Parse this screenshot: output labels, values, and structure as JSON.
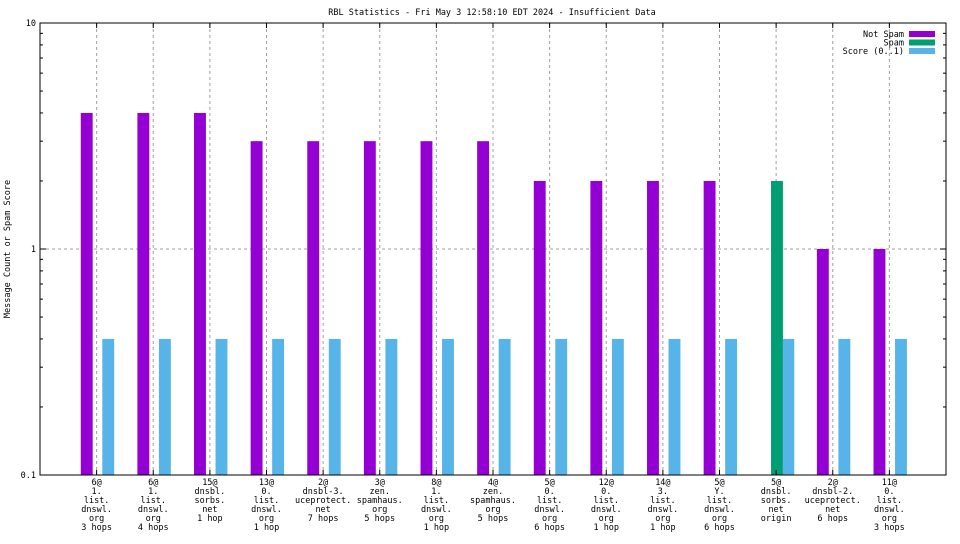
{
  "chart_data": {
    "type": "bar",
    "title": "RBL Statistics - Fri May  3 12:58:10 EDT 2024 - Insufficient Data",
    "ylabel": "Message Count or Spam Score",
    "xlabel": "",
    "yscale": "log",
    "ylim": [
      0.1,
      10
    ],
    "yticks": [
      "0.1",
      "1",
      "10"
    ],
    "grid": true,
    "legend_position": "top-right",
    "categories": [
      [
        "6@",
        "1.",
        "list.",
        "dnswl.",
        "org",
        "3 hops"
      ],
      [
        "6@",
        "1.",
        "list.",
        "dnswl.",
        "org",
        "4 hops"
      ],
      [
        "15@",
        "dnsbl.",
        "sorbs.",
        "net",
        "1 hop"
      ],
      [
        "13@",
        "0.",
        "list.",
        "dnswl.",
        "org",
        "1 hop"
      ],
      [
        "2@",
        "dnsbl-3.",
        "uceprotect.",
        "net",
        "7 hops"
      ],
      [
        "3@",
        "zen.",
        "spamhaus.",
        "org",
        "5 hops"
      ],
      [
        "8@",
        "1.",
        "list.",
        "dnswl.",
        "org",
        "1 hop"
      ],
      [
        "4@",
        "zen.",
        "spamhaus.",
        "org",
        "5 hops"
      ],
      [
        "5@",
        "0.",
        "list.",
        "dnswl.",
        "org",
        "6 hops"
      ],
      [
        "12@",
        "0.",
        "list.",
        "dnswl.",
        "org",
        "1 hop"
      ],
      [
        "14@",
        "3.",
        "list.",
        "dnswl.",
        "org",
        "1 hop"
      ],
      [
        "5@",
        "Y.",
        "list.",
        "dnswl.",
        "org",
        "6 hops"
      ],
      [
        "5@",
        "dnsbl.",
        "sorbs.",
        "net",
        "origin"
      ],
      [
        "2@",
        "dnsbl-2.",
        "uceprotect.",
        "net",
        "6 hops"
      ],
      [
        "11@",
        "0.",
        "list.",
        "dnswl.",
        "org",
        "3 hops"
      ]
    ],
    "series": [
      {
        "name": "Not Spam",
        "color": "#9400d3",
        "values": [
          4,
          4,
          4,
          3,
          3,
          3,
          3,
          3,
          2,
          2,
          2,
          2,
          null,
          1,
          1
        ]
      },
      {
        "name": "Spam",
        "color": "#009e73",
        "values": [
          null,
          null,
          null,
          null,
          null,
          null,
          null,
          null,
          null,
          null,
          null,
          null,
          2,
          null,
          null
        ]
      },
      {
        "name": "Score (0..1)",
        "color": "#56b4e9",
        "values": [
          0.4,
          0.4,
          0.4,
          0.4,
          0.4,
          0.4,
          0.4,
          0.4,
          0.4,
          0.4,
          0.4,
          0.4,
          0.4,
          0.4,
          0.4
        ]
      }
    ]
  }
}
